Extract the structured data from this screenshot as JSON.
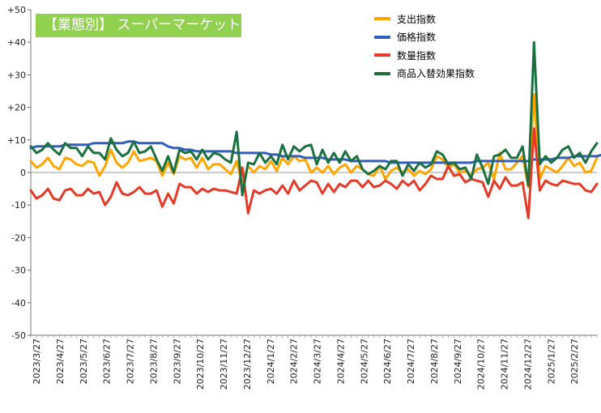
{
  "chart_data": {
    "type": "line",
    "title": "【業態別】 スーパーマーケット",
    "xlabel": "",
    "ylabel": "",
    "ylim": [
      -50,
      50
    ],
    "yticks": [
      "+50",
      "+40",
      "+30",
      "+20",
      "+10",
      "0",
      "-10",
      "-20",
      "-30",
      "-40",
      "-50"
    ],
    "xtick_labels": [
      "2023/3/27",
      "2023/4/27",
      "2023/5/27",
      "2023/6/27",
      "2023/7/27",
      "2023/8/27",
      "2023/9/27",
      "2023/10/27",
      "2023/11/27",
      "2023/12/27",
      "2024/1/27",
      "2024/2/27",
      "2024/3/27",
      "2024/4/27",
      "2024/5/27",
      "2024/6/27",
      "2024/7/27",
      "2024/8/27",
      "2024/9/27",
      "2024/10/27",
      "2024/11/27",
      "2024/12/27",
      "2025/1/27",
      "2025/2/27"
    ],
    "legend_position": "top-right",
    "grid": false,
    "series": [
      {
        "name": "支出指数",
        "color": "#ffa500",
        "values": [
          3.5,
          1.5,
          2.5,
          4.5,
          2,
          1,
          4.5,
          4,
          2.5,
          2,
          3.5,
          3,
          -1,
          2,
          7,
          3,
          1.5,
          3,
          6.5,
          3.5,
          4,
          4.5,
          3.5,
          -1,
          3,
          -0.5,
          5,
          4,
          4.5,
          1.5,
          4.5,
          1,
          2.5,
          2.5,
          1,
          -0.5,
          3.5,
          -4,
          2,
          0,
          2,
          1,
          3.5,
          0.5,
          4.5,
          2.5,
          5,
          3.5,
          4,
          0,
          1.5,
          0,
          2,
          -0.5,
          1.5,
          2.5,
          0,
          2,
          1,
          -0.5,
          -1,
          2,
          -2,
          0.5,
          1.5,
          0,
          1,
          -1,
          0.5,
          -0.5,
          1,
          5,
          4,
          1.5,
          2.5,
          0,
          0.5,
          -1,
          1,
          1.5,
          3,
          -2,
          6,
          1,
          1,
          3,
          5,
          -4.5,
          24,
          -2,
          2,
          1,
          0,
          2,
          4.5,
          2,
          3,
          0,
          0.5,
          4.5
        ]
      },
      {
        "name": "価格指数",
        "color": "#2e5fc0",
        "values": [
          7.5,
          8,
          8,
          8,
          8,
          8,
          8.5,
          8.5,
          8.5,
          8.5,
          8.5,
          9,
          9,
          9,
          9,
          9,
          9,
          9.5,
          9.5,
          9,
          9,
          9,
          9,
          9,
          8,
          7.5,
          7.5,
          7,
          7,
          6.5,
          6.5,
          6.5,
          6.5,
          6.5,
          6.5,
          6.5,
          6,
          6,
          6,
          6,
          6,
          6,
          5.5,
          5.5,
          5,
          5,
          5,
          5,
          4.5,
          4.5,
          4.5,
          4.5,
          4,
          4,
          4,
          4,
          3.5,
          3.5,
          3.5,
          3.5,
          3.5,
          3.5,
          3.5,
          3,
          3,
          3,
          3,
          3,
          3,
          3,
          3,
          3,
          3,
          3,
          3,
          3,
          3,
          3,
          3.5,
          3.5,
          3.5,
          3.5,
          3.5,
          3.5,
          3.5,
          3.5,
          3.5,
          3.5,
          4,
          4,
          4,
          4,
          4.5,
          4.5,
          4.5,
          5,
          5,
          5,
          5,
          5,
          5.5
        ]
      },
      {
        "name": "数量指数",
        "color": "#e53a27",
        "values": [
          -5.5,
          -8,
          -7,
          -5,
          -8,
          -8.5,
          -5.5,
          -5,
          -7,
          -7,
          -5,
          -6.5,
          -6,
          -10,
          -7.5,
          -3,
          -6.5,
          -7,
          -6,
          -4.5,
          -6.5,
          -6.5,
          -5.5,
          -10.5,
          -6.5,
          -9.5,
          -3.5,
          -4.5,
          -4.5,
          -6.5,
          -5,
          -6,
          -5,
          -5.5,
          -5.5,
          -6,
          -6.5,
          1.5,
          -12.5,
          -5.5,
          -6.5,
          -5.5,
          -5,
          -6.5,
          -4,
          -6.5,
          -2.5,
          -5.5,
          -4,
          -2.5,
          -3,
          -6.5,
          -3.5,
          -6,
          -3.5,
          -4.5,
          -2.5,
          -2.5,
          -4.5,
          -2.5,
          -4.5,
          -4,
          -2.5,
          -3.5,
          -5,
          -2.5,
          -4,
          -2.5,
          -5.5,
          -3.5,
          -1,
          -2,
          -2,
          2,
          -1,
          -0.5,
          -3,
          -2,
          -2.5,
          -3,
          -7.5,
          -2.5,
          -5,
          -1.5,
          -4,
          -4,
          -3,
          -14,
          13.5,
          -5.5,
          -2.5,
          -3.5,
          -4,
          -2.5,
          -3,
          -3.5,
          -3.5,
          -5.5,
          -6,
          -3.5
        ]
      },
      {
        "name": "商品入替効果指数",
        "color": "#1b7040",
        "values": [
          8,
          6,
          7,
          9,
          7,
          5.5,
          9,
          7.5,
          7.5,
          5,
          8,
          6,
          6,
          4,
          10.5,
          7,
          5,
          6,
          9.5,
          6,
          6.5,
          8,
          4,
          0.5,
          5,
          0,
          7,
          6,
          6.5,
          4,
          7,
          4,
          6,
          5.5,
          4,
          3,
          12.5,
          -7,
          3,
          2.5,
          6,
          3,
          5,
          2.5,
          8.5,
          4,
          8,
          6.5,
          8,
          8.5,
          2.5,
          7,
          3,
          6,
          3,
          6.5,
          3.5,
          5,
          1,
          -0.5,
          0.5,
          2,
          1,
          3.5,
          3.5,
          -1,
          2.5,
          0.5,
          3,
          1.5,
          2.5,
          6.5,
          5.5,
          2.5,
          3,
          1,
          1.5,
          -2,
          5.5,
          1.5,
          -3.5,
          5,
          5.5,
          7,
          4.5,
          4.5,
          8,
          -4,
          40,
          2.5,
          5,
          3,
          4.5,
          7,
          8,
          4.5,
          6,
          3,
          6.5,
          9
        ]
      }
    ]
  }
}
